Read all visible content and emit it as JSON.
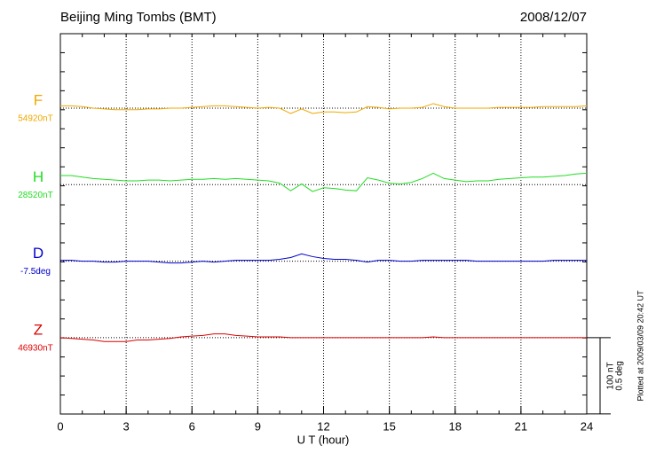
{
  "chart_data": {
    "type": "line",
    "title": "Beijing Ming Tombs (BMT)",
    "date": "2008/12/07",
    "xlabel": "U T (hour)",
    "footnote": "Plotted at 2009/03/09 20:42 UT",
    "xlim": [
      0,
      24
    ],
    "xticks": [
      0,
      3,
      6,
      9,
      12,
      15,
      18,
      21,
      24
    ],
    "grid": true,
    "x": [
      0,
      0.5,
      1,
      1.5,
      2,
      2.5,
      3,
      3.5,
      4,
      4.5,
      5,
      5.5,
      6,
      6.5,
      7,
      7.5,
      8,
      8.5,
      9,
      9.5,
      10,
      10.5,
      11,
      11.5,
      12,
      12.5,
      13,
      13.5,
      14,
      14.5,
      15,
      15.5,
      16,
      16.5,
      17,
      17.5,
      18,
      18.5,
      19,
      19.5,
      20,
      20.5,
      21,
      21.5,
      22,
      22.5,
      23,
      23.5,
      24
    ],
    "scale_bar": [
      {
        "value": 100,
        "label": "100 nT"
      },
      {
        "value": 0.5,
        "label": "0.5 deg"
      }
    ],
    "series": [
      {
        "name": "F",
        "color": "#f0a800",
        "baseline": {
          "value": 54920,
          "label": "54920nT"
        },
        "values": [
          54923,
          54923,
          54922,
          54920,
          54919,
          54918,
          54918,
          54918,
          54919,
          54919,
          54920,
          54920,
          54921,
          54922,
          54923,
          54923,
          54922,
          54921,
          54920,
          54921,
          54920,
          54913,
          54919,
          54913,
          54915,
          54915,
          54914,
          54915,
          54922,
          54921,
          54919,
          54920,
          54920,
          54921,
          54926,
          54922,
          54920,
          54920,
          54920,
          54920,
          54921,
          54921,
          54921,
          54921,
          54922,
          54922,
          54922,
          54922,
          54923
        ]
      },
      {
        "name": "H",
        "color": "#22dd22",
        "baseline": {
          "value": 28520,
          "label": "28520nT"
        },
        "values": [
          28532,
          28532,
          28530,
          28528,
          28527,
          28526,
          28525,
          28525,
          28526,
          28526,
          28525,
          28526,
          28527,
          28527,
          28528,
          28527,
          28528,
          28527,
          28526,
          28525,
          28522,
          28512,
          28521,
          28511,
          28516,
          28515,
          28513,
          28512,
          28529,
          28526,
          28522,
          28521,
          28523,
          28528,
          28535,
          28528,
          28526,
          28524,
          28525,
          28525,
          28527,
          28528,
          28529,
          28530,
          28530,
          28531,
          28532,
          28534,
          28535
        ]
      },
      {
        "name": "D",
        "color": "#0000cc",
        "baseline": {
          "value": -7.5,
          "label": "-7.5deg"
        },
        "values": [
          -7.494,
          -7.494,
          -7.5,
          -7.5,
          -7.506,
          -7.506,
          -7.5,
          -7.5,
          -7.5,
          -7.506,
          -7.512,
          -7.512,
          -7.506,
          -7.5,
          -7.506,
          -7.5,
          -7.494,
          -7.494,
          -7.494,
          -7.494,
          -7.488,
          -7.476,
          -7.452,
          -7.47,
          -7.482,
          -7.488,
          -7.488,
          -7.494,
          -7.506,
          -7.494,
          -7.494,
          -7.5,
          -7.5,
          -7.494,
          -7.494,
          -7.494,
          -7.494,
          -7.494,
          -7.5,
          -7.5,
          -7.5,
          -7.5,
          -7.5,
          -7.5,
          -7.5,
          -7.494,
          -7.494,
          -7.494,
          -7.494
        ]
      },
      {
        "name": "Z",
        "color": "#dd0000",
        "baseline": {
          "value": 46930,
          "label": "46930nT"
        },
        "values": [
          46930,
          46929,
          46928,
          46927,
          46925,
          46925,
          46925,
          46927,
          46927,
          46928,
          46929,
          46931,
          46932,
          46933,
          46935,
          46935,
          46933,
          46932,
          46931,
          46931,
          46931,
          46930,
          46930,
          46930,
          46930,
          46930,
          46930,
          46930,
          46930,
          46930,
          46930,
          46930,
          46930,
          46930,
          46931,
          46930,
          46930,
          46930,
          46930,
          46930,
          46930,
          46930,
          46930,
          46930,
          46930,
          46930,
          46930,
          46930,
          46930
        ]
      }
    ]
  }
}
